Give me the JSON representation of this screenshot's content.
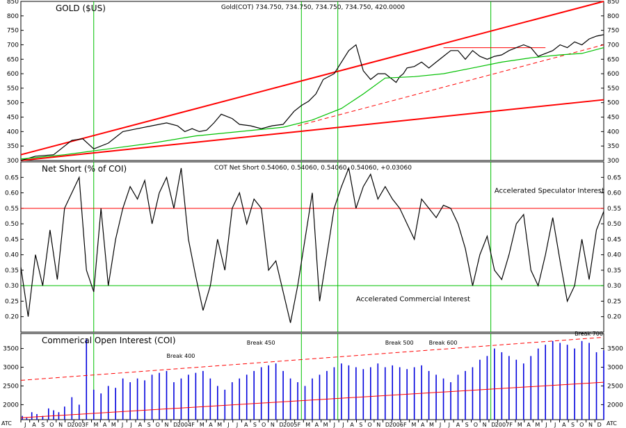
{
  "chart_data": [
    {
      "id": "gold",
      "type": "line",
      "title": "GOLD ($US)",
      "header": "Gold(COT) 734.750, 734.750, 734.750, 734.750, 420.0000",
      "ylim": [
        300,
        850
      ],
      "yticks": [
        300,
        350,
        400,
        450,
        500,
        550,
        600,
        650,
        700,
        750,
        800,
        850
      ],
      "series": [
        {
          "color": "#000000",
          "t": [
            0,
            20,
            45,
            70,
            85,
            100,
            120,
            140,
            160,
            180,
            200,
            215,
            225,
            235,
            245,
            255,
            265,
            275,
            290,
            300,
            315,
            330,
            345,
            360,
            375,
            385,
            395,
            405,
            415,
            430,
            440,
            450,
            460,
            470,
            480,
            490,
            500,
            510,
            515,
            520,
            525,
            530,
            540,
            550,
            560,
            570,
            580,
            590,
            600,
            610,
            620,
            630,
            640,
            650,
            660,
            670,
            680,
            690,
            700,
            710,
            720,
            730,
            740,
            750,
            760,
            770,
            780,
            790,
            800
          ],
          "values": [
            300,
            315,
            320,
            370,
            375,
            340,
            360,
            400,
            410,
            420,
            430,
            420,
            400,
            410,
            400,
            405,
            430,
            460,
            445,
            425,
            420,
            410,
            420,
            425,
            470,
            490,
            505,
            530,
            580,
            600,
            640,
            680,
            700,
            610,
            580,
            600,
            600,
            580,
            570,
            590,
            600,
            620,
            625,
            640,
            620,
            640,
            660,
            680,
            680,
            650,
            680,
            660,
            650,
            660,
            665,
            680,
            690,
            700,
            690,
            660,
            670,
            680,
            700,
            690,
            710,
            700,
            720,
            730,
            735
          ]
        },
        {
          "color": "#00c000",
          "t": [
            0,
            60,
            120,
            180,
            240,
            300,
            360,
            400,
            440,
            470,
            500,
            540,
            580,
            620,
            660,
            700,
            740,
            770,
            800
          ],
          "values": [
            305,
            320,
            340,
            360,
            385,
            400,
            415,
            440,
            480,
            530,
            585,
            590,
            600,
            620,
            640,
            655,
            665,
            670,
            690
          ]
        }
      ],
      "trend_lines": [
        {
          "color": "#ff0000",
          "width": 2,
          "t": [
            0,
            800
          ],
          "values": [
            320,
            850
          ]
        },
        {
          "color": "#ff0000",
          "width": 2,
          "t": [
            0,
            800
          ],
          "values": [
            300,
            510
          ]
        },
        {
          "color": "#ff0000",
          "width": 1,
          "dash": true,
          "t": [
            380,
            800
          ],
          "values": [
            420,
            700
          ]
        },
        {
          "color": "#ff0000",
          "width": 1,
          "t": [
            580,
            720
          ],
          "values": [
            690,
            690
          ]
        }
      ]
    },
    {
      "id": "netshort",
      "type": "line",
      "title": "Net Short (% of COI)",
      "header": "COT Net Short 0.54060, 0.54060, 0.54060, 0.54060, +0.03060",
      "ylim": [
        0.15,
        0.7
      ],
      "yticks": [
        0.2,
        0.25,
        0.3,
        0.35,
        0.4,
        0.45,
        0.5,
        0.55,
        0.6,
        0.65
      ],
      "ytick_labels": [
        "0.20",
        "0.25",
        "0.30",
        "0.35",
        "0.40",
        "0.45",
        "0.50",
        "0.55",
        "0.60",
        "0.65"
      ],
      "hlines": [
        {
          "value": 0.55,
          "color": "#ff0000"
        },
        {
          "value": 0.3,
          "color": "#00c000"
        }
      ],
      "annotations": [
        {
          "text": "Accelerated Speculator Interest",
          "t": 650,
          "value": 0.6
        },
        {
          "text": "Accelerated Commercial Interest",
          "t": 460,
          "value": 0.25
        }
      ],
      "series": [
        {
          "color": "#000000",
          "t": [
            0,
            10,
            20,
            30,
            40,
            50,
            60,
            70,
            80,
            90,
            100,
            110,
            120,
            130,
            140,
            150,
            160,
            170,
            180,
            190,
            200,
            210,
            220,
            230,
            240,
            250,
            260,
            270,
            280,
            290,
            300,
            310,
            320,
            330,
            340,
            350,
            360,
            370,
            380,
            390,
            400,
            410,
            420,
            430,
            440,
            450,
            460,
            470,
            480,
            490,
            500,
            510,
            520,
            530,
            540,
            550,
            560,
            570,
            580,
            590,
            600,
            610,
            620,
            630,
            640,
            650,
            660,
            670,
            680,
            690,
            700,
            710,
            720,
            730,
            740,
            750,
            760,
            770,
            780,
            790,
            800
          ],
          "values": [
            0.36,
            0.2,
            0.4,
            0.3,
            0.48,
            0.32,
            0.55,
            0.6,
            0.65,
            0.35,
            0.28,
            0.55,
            0.3,
            0.45,
            0.55,
            0.62,
            0.58,
            0.64,
            0.5,
            0.6,
            0.65,
            0.55,
            0.68,
            0.45,
            0.33,
            0.22,
            0.3,
            0.45,
            0.35,
            0.55,
            0.6,
            0.5,
            0.58,
            0.55,
            0.35,
            0.38,
            0.28,
            0.18,
            0.3,
            0.45,
            0.6,
            0.25,
            0.4,
            0.55,
            0.62,
            0.68,
            0.55,
            0.62,
            0.66,
            0.58,
            0.62,
            0.58,
            0.55,
            0.5,
            0.45,
            0.58,
            0.55,
            0.52,
            0.56,
            0.55,
            0.5,
            0.42,
            0.3,
            0.4,
            0.46,
            0.35,
            0.32,
            0.4,
            0.5,
            0.53,
            0.35,
            0.3,
            0.4,
            0.52,
            0.38,
            0.25,
            0.3,
            0.45,
            0.32,
            0.48,
            0.54
          ]
        }
      ]
    },
    {
      "id": "coi",
      "type": "bar",
      "title": "Commerical Open Interest (COI)",
      "ylim": [
        1600,
        3900
      ],
      "yticks": [
        2000,
        2500,
        3000,
        3500
      ],
      "bars": {
        "color": "#0000dd",
        "t": [
          2,
          8,
          15,
          22,
          30,
          38,
          45,
          52,
          60,
          70,
          80,
          90,
          100,
          110,
          120,
          130,
          140,
          150,
          160,
          170,
          180,
          190,
          200,
          210,
          220,
          230,
          240,
          250,
          260,
          270,
          280,
          290,
          300,
          310,
          320,
          330,
          340,
          350,
          360,
          370,
          380,
          390,
          400,
          410,
          420,
          430,
          440,
          450,
          460,
          470,
          480,
          490,
          500,
          510,
          520,
          530,
          540,
          550,
          560,
          570,
          580,
          590,
          600,
          610,
          620,
          630,
          640,
          650,
          660,
          670,
          680,
          690,
          700,
          710,
          720,
          730,
          740,
          750,
          760,
          770,
          780,
          790,
          800
        ],
        "values": [
          1700,
          1650,
          1800,
          1750,
          1700,
          1900,
          1850,
          1800,
          1950,
          2200,
          2000,
          3750,
          2400,
          2300,
          2500,
          2450,
          2700,
          2600,
          2700,
          2650,
          2800,
          2850,
          2900,
          2600,
          2700,
          2800,
          2850,
          2900,
          2700,
          2500,
          2400,
          2600,
          2700,
          2800,
          2900,
          3000,
          3050,
          3100,
          2900,
          2700,
          2600,
          2500,
          2700,
          2800,
          2900,
          3000,
          3100,
          3050,
          3000,
          2950,
          3000,
          3100,
          3000,
          3050,
          3000,
          2950,
          3000,
          3050,
          2900,
          2800,
          2700,
          2600,
          2800,
          2900,
          3000,
          3200,
          3300,
          3500,
          3400,
          3300,
          3200,
          3100,
          3300,
          3500,
          3600,
          3700,
          3650,
          3600,
          3500,
          3700,
          3650,
          3400,
          3450
        ]
      },
      "trend_lines": [
        {
          "color": "#ff0000",
          "width": 1,
          "dash": true,
          "t": [
            0,
            800
          ],
          "values": [
            2650,
            3800
          ]
        },
        {
          "color": "#ff0000",
          "width": 1,
          "t": [
            0,
            800
          ],
          "values": [
            1650,
            2600
          ]
        }
      ],
      "annotations": [
        {
          "text": "Break 400",
          "t": 200,
          "value": 3250
        },
        {
          "text": "Break 450",
          "t": 310,
          "value": 3600
        },
        {
          "text": "Break 500",
          "t": 500,
          "value": 3600
        },
        {
          "text": "Break 600",
          "t": 560,
          "value": 3600
        },
        {
          "text": "Break 700",
          "t": 760,
          "value": 3840
        }
      ]
    }
  ],
  "x_axis": {
    "labels": [
      "J",
      "A",
      "S",
      "O",
      "N",
      "D",
      "2003",
      "F",
      "M",
      "A",
      "M",
      "J",
      "J",
      "A",
      "S",
      "O",
      "N",
      "D",
      "2004",
      "F",
      "M",
      "A",
      "M",
      "J",
      "J",
      "A",
      "S",
      "O",
      "N",
      "D",
      "2005",
      "F",
      "M",
      "A",
      "M",
      "J",
      "J",
      "A",
      "S",
      "O",
      "N",
      "D",
      "2006",
      "F",
      "M",
      "A",
      "M",
      "J",
      "J",
      "A",
      "S",
      "O",
      "N",
      "D",
      "2007",
      "F",
      "M",
      "A",
      "M",
      "J",
      "J",
      "A",
      "S",
      "O",
      "N",
      "D"
    ],
    "vlines_t": [
      100,
      385,
      435,
      645
    ],
    "corner_left": "ATC",
    "corner_right": "ATC"
  }
}
